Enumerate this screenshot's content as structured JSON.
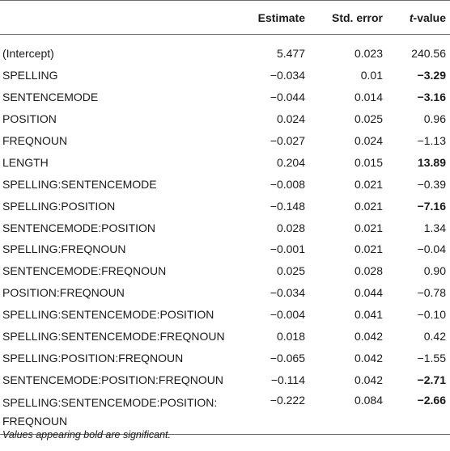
{
  "table": {
    "headers": {
      "term": "",
      "estimate": "Estimate",
      "std_error": "Std. error",
      "t_value_italic": "t",
      "t_value_suffix": "-value"
    },
    "rows": [
      {
        "term": "(Intercept)",
        "estimate": "5.477",
        "std_error": "0.023",
        "t_value": "240.56",
        "significant": false
      },
      {
        "term": "SPELLING",
        "estimate": "−0.034",
        "std_error": "0.01",
        "t_value": "−3.29",
        "significant": true
      },
      {
        "term": "SENTENCEMODE",
        "estimate": "−0.044",
        "std_error": "0.014",
        "t_value": "−3.16",
        "significant": true
      },
      {
        "term": "POSITION",
        "estimate": "0.024",
        "std_error": "0.025",
        "t_value": "0.96",
        "significant": false
      },
      {
        "term": "FREQNOUN",
        "estimate": "−0.027",
        "std_error": "0.024",
        "t_value": "−1.13",
        "significant": false
      },
      {
        "term": "LENGTH",
        "estimate": "0.204",
        "std_error": "0.015",
        "t_value": "13.89",
        "significant": true
      },
      {
        "term": "SPELLING:SENTENCEMODE",
        "estimate": "−0.008",
        "std_error": "0.021",
        "t_value": "−0.39",
        "significant": false
      },
      {
        "term": "SPELLING:POSITION",
        "estimate": "−0.148",
        "std_error": "0.021",
        "t_value": "−7.16",
        "significant": true
      },
      {
        "term": "SENTENCEMODE:POSITION",
        "estimate": "0.028",
        "std_error": "0.021",
        "t_value": "1.34",
        "significant": false
      },
      {
        "term": "SPELLING:FREQNOUN",
        "estimate": "−0.001",
        "std_error": "0.021",
        "t_value": "−0.04",
        "significant": false
      },
      {
        "term": "SENTENCEMODE:FREQNOUN",
        "estimate": "0.025",
        "std_error": "0.028",
        "t_value": "0.90",
        "significant": false
      },
      {
        "term": "POSITION:FREQNOUN",
        "estimate": "−0.034",
        "std_error": "0.044",
        "t_value": "−0.78",
        "significant": false
      },
      {
        "term": "SPELLING:SENTENCEMODE:POSITION",
        "estimate": "−0.004",
        "std_error": "0.041",
        "t_value": "−0.10",
        "significant": false
      },
      {
        "term": "SPELLING:SENTENCEMODE:FREQNOUN",
        "estimate": "0.018",
        "std_error": "0.042",
        "t_value": "0.42",
        "significant": false
      },
      {
        "term": "SPELLING:POSITION:FREQNOUN",
        "estimate": "−0.065",
        "std_error": "0.042",
        "t_value": "−1.55",
        "significant": false
      },
      {
        "term": "SENTENCEMODE:POSITION:FREQNOUN",
        "estimate": "−0.114",
        "std_error": "0.042",
        "t_value": "−2.71",
        "significant": true
      },
      {
        "term": "SPELLING:SENTENCEMODE:POSITION: FREQNOUN",
        "estimate": "−0.222",
        "std_error": "0.084",
        "t_value": "−2.66",
        "significant": true
      }
    ]
  },
  "footnote": "Values appearing bold are significant."
}
